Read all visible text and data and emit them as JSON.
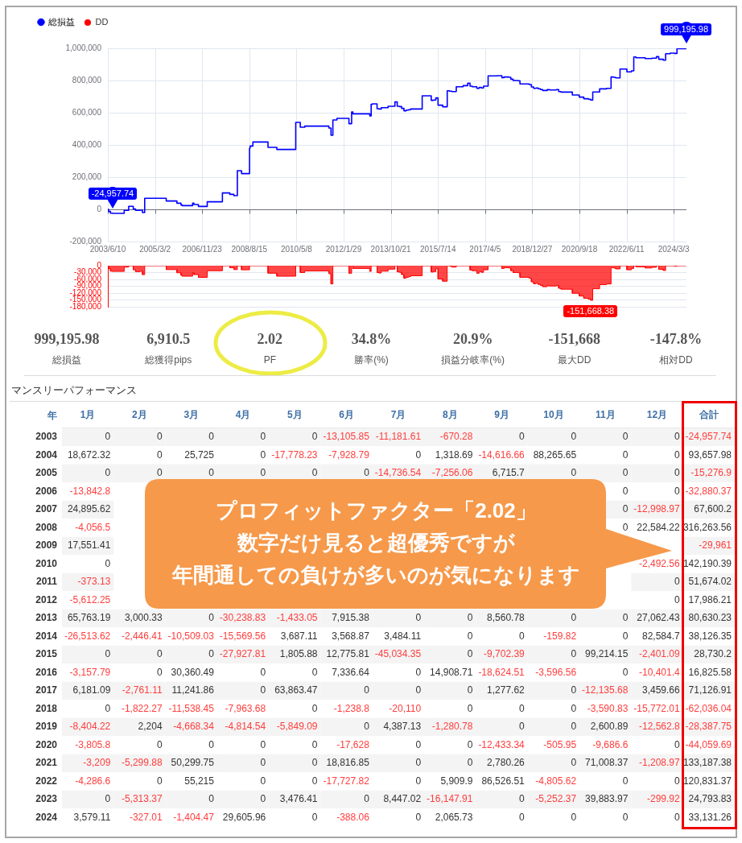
{
  "chart_data": [
    {
      "type": "step",
      "x": [
        "2003-06-10",
        "2003-06-20",
        "2003-07-15",
        "2003-08-15",
        "2004-01-15",
        "2004-03-15",
        "2004-05-15",
        "2004-06-15",
        "2004-08-15",
        "2004-09-15",
        "2004-10-15",
        "2005-07-30",
        "2005-12-20",
        "2006-02-12",
        "2006-03-01",
        "2006-07-18",
        "2006-08-05",
        "2006-10-04",
        "2007-01-30",
        "2007-08-21",
        "2007-11-28",
        "2008-01-21",
        "2008-03-08",
        "2008-05-03",
        "2008-08-18",
        "2008-08-25",
        "2008-10-02",
        "2009-04-22",
        "2009-08-18",
        "2010-04-28",
        "2010-06-28",
        "2010-08-27",
        "2011-07-15",
        "2011-08-13",
        "2011-09-07",
        "2011-10-31",
        "2012-04-09",
        "2012-05-15",
        "2012-06-01",
        "2013-01-13",
        "2013-01-31",
        "2013-02-15",
        "2013-04-20",
        "2013-05-15",
        "2013-06-15",
        "2013-09-15",
        "2013-12-15",
        "2014-01-15",
        "2014-02-15",
        "2014-03-15",
        "2014-04-15",
        "2014-05-15",
        "2014-06-15",
        "2014-07-15",
        "2014-12-15",
        "2015-04-15",
        "2015-05-15",
        "2015-06-15",
        "2015-07-15",
        "2015-09-15",
        "2015-11-15",
        "2015-12-15",
        "2016-01-15",
        "2016-03-15",
        "2016-06-15",
        "2016-08-15",
        "2016-09-15",
        "2016-10-15",
        "2016-12-15",
        "2017-01-15",
        "2017-02-15",
        "2017-03-15",
        "2017-05-15",
        "2017-09-15",
        "2017-11-15",
        "2017-12-15",
        "2018-02-15",
        "2018-03-15",
        "2018-04-15",
        "2018-06-15",
        "2018-07-15",
        "2018-11-15",
        "2018-12-15",
        "2019-01-15",
        "2019-02-15",
        "2019-03-15",
        "2019-04-15",
        "2019-05-15",
        "2019-07-15",
        "2019-08-15",
        "2019-11-15",
        "2019-12-15",
        "2020-01-15",
        "2020-06-15",
        "2020-09-15",
        "2020-11-15",
        "2021-01-15",
        "2021-02-15",
        "2021-03-15",
        "2021-06-15",
        "2021-09-15",
        "2021-11-15",
        "2021-12-15",
        "2022-01-15",
        "2022-03-15",
        "2022-06-15",
        "2022-08-15",
        "2022-09-15",
        "2022-10-15",
        "2023-02-15",
        "2023-05-15",
        "2023-07-15",
        "2023-08-15",
        "2023-10-15",
        "2023-11-15",
        "2024-01-15",
        "2024-03-15",
        "2024-04-15",
        "2024-08-15"
      ],
      "series": [
        {
          "name": "総損益",
          "color": "#0000ff",
          "values": [
            0,
            -13000,
            -24000,
            -24957.74,
            -6000,
            19000,
            2000,
            -6000,
            -5000,
            -20000,
            69000,
            52000,
            38000,
            27000,
            23000,
            38000,
            30000,
            18000,
            47000,
            102000,
            93000,
            85000,
            240000,
            222000,
            380000,
            393000,
            418000,
            385000,
            372000,
            540000,
            510000,
            517000,
            505000,
            460000,
            555000,
            565000,
            532000,
            605000,
            593000,
            580000,
            652000,
            655000,
            625000,
            623000,
            631000,
            640000,
            667000,
            640000,
            638000,
            627000,
            612000,
            616000,
            619000,
            623000,
            705000,
            677000,
            679000,
            692000,
            647000,
            637000,
            736000,
            734000,
            731000,
            761000,
            768000,
            783000,
            765000,
            761000,
            751000,
            757000,
            754000,
            765000,
            829000,
            830000,
            818000,
            822000,
            820000,
            808000,
            800000,
            799000,
            779000,
            775000,
            760000,
            751000,
            753000,
            749000,
            744000,
            738000,
            743000,
            741000,
            744000,
            731000,
            728000,
            710000,
            697000,
            687000,
            684000,
            679000,
            729000,
            748000,
            751000,
            822000,
            820000,
            816000,
            871000,
            854000,
            860000,
            946000,
            941000,
            936000,
            939000,
            948000,
            932000,
            926000,
            966000,
            970000,
            968000,
            998000,
            999195.98
          ]
        }
      ],
      "xlim": [
        "2003-06-10",
        "2024-08-20"
      ],
      "xticks": [
        {
          "value": "2003-06-10",
          "label": "2003/6/10"
        },
        {
          "value": "2005-03-02",
          "label": "2005/3/2"
        },
        {
          "value": "2006-11-23",
          "label": "2006/11/23"
        },
        {
          "value": "2008-08-15",
          "label": "2008/8/15"
        },
        {
          "value": "2010-05-08",
          "label": "2010/5/8"
        },
        {
          "value": "2012-01-29",
          "label": "2012/1/29"
        },
        {
          "value": "2013-10-21",
          "label": "2013/10/21"
        },
        {
          "value": "2015-07-14",
          "label": "2015/7/14"
        },
        {
          "value": "2017-04-05",
          "label": "2017/4/5"
        },
        {
          "value": "2018-12-27",
          "label": "2018/12/27"
        },
        {
          "value": "2020-09-18",
          "label": "2020/9/18"
        },
        {
          "value": "2022-06-11",
          "label": "2022/6/11"
        },
        {
          "value": "2024-03-03",
          "label": "2024/3/3"
        }
      ],
      "ylim": [
        -200000,
        1000000
      ],
      "yticks": [
        {
          "value": -200000,
          "label": "-200,000"
        },
        {
          "value": 0,
          "label": "0"
        },
        {
          "value": 200000,
          "label": "200,000"
        },
        {
          "value": 400000,
          "label": "400,000"
        },
        {
          "value": 600000,
          "label": "600,000"
        },
        {
          "value": 800000,
          "label": "800,000"
        },
        {
          "value": 1000000,
          "label": "1,000,000"
        }
      ],
      "grid": true,
      "legend": "top left",
      "annotations": [
        {
          "text": "-24,957.74",
          "x": "2003-08-15",
          "y": -24957.74
        },
        {
          "text": "999,195.98",
          "x": "2024-08-15",
          "y": 999195.98
        }
      ]
    },
    {
      "type": "area",
      "x": [
        "2003-06-10",
        "2003-06-20",
        "2003-06-20",
        "2003-07-15",
        "2003-07-15",
        "2003-08-15",
        "2003-08-15",
        "2004-01-15",
        "2004-01-15",
        "2004-03-15",
        "2004-03-15",
        "2004-05-15",
        "2004-05-15",
        "2004-06-15",
        "2004-06-15",
        "2004-08-15",
        "2004-08-15",
        "2004-09-15",
        "2004-09-15",
        "2004-10-15",
        "2004-10-15",
        "2005-07-30",
        "2005-07-30",
        "2005-12-20",
        "2005-12-20",
        "2006-02-12",
        "2006-02-12",
        "2006-03-01",
        "2006-03-01",
        "2006-07-18",
        "2006-07-18",
        "2006-08-05",
        "2006-08-05",
        "2006-10-04",
        "2006-10-04",
        "2007-01-30",
        "2007-01-30",
        "2007-08-21",
        "2007-08-21",
        "2007-11-28",
        "2007-11-28",
        "2008-01-21",
        "2008-01-21",
        "2008-03-08",
        "2008-03-08",
        "2008-05-03",
        "2008-05-03",
        "2008-08-18",
        "2008-08-18",
        "2009-04-22",
        "2009-04-22",
        "2009-08-18",
        "2009-08-18",
        "2010-04-28",
        "2010-04-28",
        "2010-06-28",
        "2010-06-28",
        "2010-08-27",
        "2010-08-27",
        "2011-07-15",
        "2011-07-15",
        "2011-08-13",
        "2011-08-13",
        "2011-09-07",
        "2011-09-07",
        "2012-04-09",
        "2012-04-09",
        "2012-05-15",
        "2012-05-15",
        "2012-06-01",
        "2012-06-01",
        "2013-01-13",
        "2013-01-13",
        "2013-01-31",
        "2013-01-31",
        "2013-04-20",
        "2013-04-20",
        "2013-05-15",
        "2013-05-15",
        "2013-06-15",
        "2013-06-15",
        "2013-09-15",
        "2013-09-15",
        "2013-12-15",
        "2013-12-15",
        "2014-01-15",
        "2014-01-15",
        "2014-02-15",
        "2014-02-15",
        "2014-03-15",
        "2014-03-15",
        "2014-04-15",
        "2014-04-15",
        "2014-05-15",
        "2014-05-15",
        "2014-06-15",
        "2014-06-15",
        "2014-07-15",
        "2014-07-15",
        "2014-12-15",
        "2014-12-15",
        "2015-04-15",
        "2015-04-15",
        "2015-05-15",
        "2015-05-15",
        "2015-06-15",
        "2015-06-15",
        "2015-07-15",
        "2015-07-15",
        "2015-09-15",
        "2015-09-15",
        "2015-11-15",
        "2015-11-15",
        "2015-12-15",
        "2015-12-15",
        "2016-01-15",
        "2016-01-15",
        "2016-03-15",
        "2016-03-15",
        "2016-09-15",
        "2016-09-15",
        "2016-10-15",
        "2016-10-15",
        "2016-12-15",
        "2016-12-15",
        "2017-01-15",
        "2017-01-15",
        "2017-02-15",
        "2017-02-15",
        "2017-03-15",
        "2017-03-15",
        "2017-05-15",
        "2017-05-15",
        "2017-11-15",
        "2017-11-15",
        "2017-12-15",
        "2017-12-15",
        "2018-02-15",
        "2018-02-15",
        "2018-03-15",
        "2018-03-15",
        "2018-04-15",
        "2018-04-15",
        "2018-06-15",
        "2018-06-15",
        "2018-07-15",
        "2018-07-15",
        "2018-11-15",
        "2018-11-15",
        "2018-12-15",
        "2018-12-15",
        "2019-01-15",
        "2019-01-15",
        "2019-02-15",
        "2019-02-15",
        "2019-03-15",
        "2019-03-15",
        "2019-04-15",
        "2019-04-15",
        "2019-05-15",
        "2019-05-15",
        "2019-07-15",
        "2019-07-15",
        "2019-08-15",
        "2019-08-15",
        "2019-11-15",
        "2019-11-15",
        "2019-12-15",
        "2019-12-15",
        "2020-01-15",
        "2020-01-15",
        "2020-06-15",
        "2020-06-15",
        "2020-09-15",
        "2020-09-15",
        "2020-11-15",
        "2020-11-15",
        "2021-01-15",
        "2021-01-15",
        "2021-02-15",
        "2021-02-15",
        "2021-03-15",
        "2021-03-15",
        "2021-06-15",
        "2021-06-15",
        "2021-09-15",
        "2021-09-15",
        "2021-11-15",
        "2021-11-15",
        "2021-12-15",
        "2021-12-15",
        "2022-01-15",
        "2022-01-15",
        "2022-03-15",
        "2022-03-15",
        "2022-06-15",
        "2022-06-15",
        "2022-08-15",
        "2022-08-15",
        "2022-09-15",
        "2022-09-15",
        "2022-10-15",
        "2022-10-15",
        "2023-02-15",
        "2023-02-15",
        "2023-05-15",
        "2023-05-15",
        "2023-07-15",
        "2023-07-15",
        "2023-08-15",
        "2023-08-15",
        "2023-10-15",
        "2023-10-15",
        "2023-11-15",
        "2023-11-15",
        "2024-03-15",
        "2024-03-15",
        "2024-04-15",
        "2024-04-15",
        "2024-08-15"
      ],
      "series": [
        {
          "name": "DD",
          "color": "#ff0000",
          "values": [
            0,
            0,
            -13000,
            -13000,
            -24000,
            -24000,
            -25000,
            -25000,
            -6000,
            -6000,
            0,
            0,
            -18000,
            -18000,
            -26000,
            -26000,
            -24000,
            -24000,
            -39000,
            -39000,
            0,
            0,
            -17000,
            -17000,
            -31000,
            -31000,
            -42000,
            -42000,
            -46000,
            -46000,
            -31000,
            -31000,
            -39000,
            -39000,
            -51000,
            -51000,
            -22000,
            -22000,
            0,
            0,
            -9000,
            -9000,
            -17000,
            -17000,
            0,
            0,
            -18000,
            -18000,
            0,
            0,
            -33000,
            -33000,
            -46000,
            -46000,
            0,
            0,
            -30000,
            -30000,
            -23000,
            -23000,
            -35000,
            -35000,
            -80000,
            -80000,
            0,
            0,
            -33000,
            -33000,
            0,
            0,
            -12000,
            -12000,
            -25000,
            -25000,
            0,
            0,
            -30000,
            -30000,
            -32000,
            -32000,
            -24000,
            -24000,
            -15000,
            -15000,
            0,
            0,
            -27000,
            -27000,
            -29000,
            -29000,
            -39000,
            -39000,
            -55000,
            -55000,
            -51000,
            -51000,
            -48000,
            -48000,
            -44000,
            -44000,
            0,
            0,
            -28000,
            -28000,
            -26000,
            -26000,
            -13000,
            -13000,
            -58000,
            -58000,
            -68000,
            -68000,
            0,
            0,
            -2000,
            -2000,
            -6000,
            -6000,
            0,
            0,
            -19000,
            -19000,
            -22000,
            -22000,
            -33000,
            -33000,
            -26000,
            -26000,
            -29000,
            -29000,
            -18000,
            -18000,
            0,
            0,
            -12000,
            -12000,
            -9000,
            -9000,
            -10000,
            -10000,
            -22000,
            -22000,
            -30000,
            -30000,
            -31000,
            -31000,
            -51000,
            -51000,
            -55000,
            -55000,
            -71000,
            -71000,
            -79000,
            -79000,
            -77000,
            -77000,
            -82000,
            -82000,
            -86000,
            -86000,
            -92000,
            -92000,
            -88000,
            -88000,
            -89000,
            -89000,
            -87000,
            -87000,
            -99000,
            -99000,
            -103000,
            -103000,
            -121000,
            -121000,
            -133000,
            -133000,
            -143000,
            -143000,
            -146000,
            -146000,
            -151668.38,
            -151668.38,
            -101000,
            -101000,
            -83000,
            -83000,
            -80000,
            -80000,
            -9000,
            -9000,
            -10000,
            -10000,
            -14000,
            -14000,
            0,
            0,
            -18000,
            -18000,
            -12000,
            -12000,
            0,
            0,
            -5000,
            -5000,
            -10000,
            -10000,
            -7000,
            -7000,
            0,
            0,
            -16000,
            -16000,
            -21000,
            -21000,
            0,
            0,
            -2000,
            -2000,
            0,
            0
          ]
        }
      ],
      "xlim": [
        "2003-06-10",
        "2024-08-20"
      ],
      "ylim": [
        -180000,
        0
      ],
      "yticks": [
        {
          "value": -180000,
          "label": "-180,000"
        },
        {
          "value": -150000,
          "label": "-150,000"
        },
        {
          "value": -120000,
          "label": "-120,000"
        },
        {
          "value": -90000,
          "label": "-90,000"
        },
        {
          "value": -60000,
          "label": "-60,000"
        },
        {
          "value": -30000,
          "label": "-30,000"
        },
        {
          "value": 0,
          "label": "0"
        }
      ],
      "tick_labels": "y",
      "grid": "y",
      "legend": "top left",
      "annotations": [
        {
          "text": "-151,668.38",
          "x": "2021-02-15",
          "y": -151668.38
        }
      ]
    },
    {
      "type": "other",
      "categories": [
        "総損益",
        "総獲得pips",
        "PF",
        "勝率(%)",
        "損益分岐率(%)",
        "最大DD",
        "相対DD"
      ],
      "value_labels": [
        "999,195.98",
        "6,910.5",
        "2.02",
        "34.8%",
        "20.9%",
        "-151,668",
        "-147.8%"
      ]
    },
    {
      "type": "heatmap",
      "title": "マンスリーパフォーマンス",
      "ylabel": "年",
      "categories": [
        "1月",
        "2月",
        "3月",
        "4月",
        "5月",
        "6月",
        "7月",
        "8月",
        "9月",
        "10月",
        "11月",
        "12月",
        "合計"
      ],
      "y_categories": [
        "2003",
        "2004",
        "2005",
        "2006",
        "2007",
        "2008",
        "2009",
        "2010",
        "2011",
        "2012",
        "2013",
        "2014",
        "2015",
        "2016",
        "2017",
        "2018",
        "2019",
        "2020",
        "2021",
        "2022",
        "2023",
        "2024"
      ],
      "cells": [
        [
          0,
          0,
          0,
          0,
          0,
          -13105.85,
          -11181.61,
          -670.28,
          0,
          0,
          0,
          0,
          -24957.74
        ],
        [
          18672.32,
          0,
          25725,
          0,
          -17778.23,
          -7928.79,
          0,
          1318.69,
          -14616.66,
          88265.65,
          0,
          0,
          93657.98
        ],
        [
          0,
          0,
          0,
          0,
          0,
          0,
          -14736.54,
          -7256.06,
          6715.7,
          0,
          0,
          0,
          -15276.9
        ],
        [
          -13842.8,
          null,
          null,
          null,
          null,
          null,
          null,
          null,
          null,
          null,
          0,
          0,
          -32880.37
        ],
        [
          24895.62,
          null,
          null,
          null,
          null,
          null,
          null,
          null,
          null,
          null,
          0,
          -12998.97,
          67600.2
        ],
        [
          -4056.5,
          null,
          null,
          null,
          null,
          null,
          null,
          null,
          null,
          null,
          0,
          22584.22,
          316263.56
        ],
        [
          17551.41,
          null,
          null,
          null,
          null,
          null,
          null,
          null,
          null,
          null,
          null,
          null,
          -29961
        ],
        [
          0,
          null,
          null,
          null,
          null,
          null,
          null,
          null,
          null,
          null,
          null,
          -2492.56,
          142190.39
        ],
        [
          -373.13,
          null,
          null,
          null,
          null,
          null,
          null,
          null,
          null,
          null,
          null,
          0,
          51674.02
        ],
        [
          -5612.25,
          null,
          null,
          null,
          null,
          null,
          null,
          null,
          null,
          null,
          null,
          0,
          17986.21
        ],
        [
          65763.19,
          3000.33,
          0,
          -30238.83,
          -1433.05,
          7915.38,
          0,
          0,
          8560.78,
          0,
          0,
          27062.43,
          80630.23
        ],
        [
          -26513.62,
          -2446.41,
          -10509.03,
          -15569.56,
          3687.11,
          3568.87,
          3484.11,
          0,
          0,
          -159.82,
          0,
          82584.7,
          38126.35
        ],
        [
          0,
          0,
          0,
          -27927.81,
          1805.88,
          12775.81,
          -45034.35,
          0,
          -9702.39,
          0,
          99214.15,
          -2401.09,
          28730.2
        ],
        [
          -3157.79,
          0,
          30360.49,
          0,
          0,
          7336.64,
          0,
          14908.71,
          -18624.51,
          -3596.56,
          0,
          -10401.4,
          16825.58
        ],
        [
          6181.09,
          -2761.11,
          11241.86,
          0,
          63863.47,
          0,
          0,
          0,
          1277.62,
          0,
          -12135.68,
          3459.66,
          71126.91
        ],
        [
          0,
          -1822.27,
          -11538.45,
          -7963.68,
          0,
          -1238.8,
          -20110,
          0,
          0,
          0,
          -3590.83,
          -15772.01,
          -62036.04
        ],
        [
          -8404.22,
          2204,
          -4668.34,
          -4814.54,
          -5849.09,
          0,
          4387.13,
          -1280.78,
          0,
          0,
          2600.89,
          -12562.8,
          -28387.75
        ],
        [
          -3805.8,
          0,
          0,
          0,
          0,
          -17628,
          0,
          0,
          -12433.34,
          -505.95,
          -9686.6,
          0,
          -44059.69
        ],
        [
          -3209,
          -5299.88,
          50299.75,
          0,
          0,
          18816.85,
          0,
          0,
          2780.26,
          0,
          71008.37,
          -1208.97,
          133187.38
        ],
        [
          -4286.6,
          0,
          55215,
          0,
          0,
          -17727.82,
          0,
          5909.9,
          86526.51,
          -4805.62,
          0,
          0,
          120831.37
        ],
        [
          0,
          -5313.37,
          0,
          0,
          3476.41,
          0,
          8447.02,
          -16147.91,
          0,
          -5252.37,
          39883.97,
          -299.92,
          24793.83
        ],
        [
          3579.11,
          -327.01,
          -1404.47,
          29605.96,
          0,
          -388.06,
          0,
          2065.73,
          0,
          0,
          0,
          0,
          33131.26
        ]
      ],
      "cell_labels": [
        [
          "0",
          "0",
          "0",
          "0",
          "0",
          "-13,105.85",
          "-11,181.61",
          "-670.28",
          "0",
          "0",
          "0",
          "0",
          "-24,957.74"
        ],
        [
          "18,672.32",
          "0",
          "25,725",
          "0",
          "-17,778.23",
          "-7,928.79",
          "0",
          "1,318.69",
          "-14,616.66",
          "88,265.65",
          "0",
          "0",
          "93,657.98"
        ],
        [
          "0",
          "0",
          "0",
          "0",
          "0",
          "0",
          "-14,736.54",
          "-7,256.06",
          "6,715.7",
          "0",
          "0",
          "0",
          "-15,276.9"
        ],
        [
          "-13,842.8",
          null,
          null,
          null,
          null,
          null,
          null,
          null,
          null,
          null,
          "0",
          "0",
          "-32,880.37"
        ],
        [
          "24,895.62",
          null,
          null,
          null,
          null,
          null,
          null,
          null,
          null,
          null,
          "0",
          "-12,998.97",
          "67,600.2"
        ],
        [
          "-4,056.5",
          null,
          null,
          null,
          null,
          null,
          null,
          null,
          null,
          null,
          "0",
          "22,584.22",
          "316,263.56"
        ],
        [
          "17,551.41",
          null,
          null,
          null,
          null,
          null,
          null,
          null,
          null,
          null,
          null,
          null,
          "-29,961"
        ],
        [
          "0",
          null,
          null,
          null,
          null,
          null,
          null,
          null,
          null,
          null,
          null,
          "-2,492.56",
          "142,190.39"
        ],
        [
          "-373.13",
          null,
          null,
          null,
          null,
          null,
          null,
          null,
          null,
          null,
          null,
          "0",
          "51,674.02"
        ],
        [
          "-5,612.25",
          null,
          null,
          null,
          null,
          null,
          null,
          null,
          null,
          null,
          null,
          "0",
          "17,986.21"
        ],
        [
          "65,763.19",
          "3,000.33",
          "0",
          "-30,238.83",
          "-1,433.05",
          "7,915.38",
          "0",
          "0",
          "8,560.78",
          "0",
          "0",
          "27,062.43",
          "80,630.23"
        ],
        [
          "-26,513.62",
          "-2,446.41",
          "-10,509.03",
          "-15,569.56",
          "3,687.11",
          "3,568.87",
          "3,484.11",
          "0",
          "0",
          "-159.82",
          "0",
          "82,584.7",
          "38,126.35"
        ],
        [
          "0",
          "0",
          "0",
          "-27,927.81",
          "1,805.88",
          "12,775.81",
          "-45,034.35",
          "0",
          "-9,702.39",
          "0",
          "99,214.15",
          "-2,401.09",
          "28,730.2"
        ],
        [
          "-3,157.79",
          "0",
          "30,360.49",
          "0",
          "0",
          "7,336.64",
          "0",
          "14,908.71",
          "-18,624.51",
          "-3,596.56",
          "0",
          "-10,401.4",
          "16,825.58"
        ],
        [
          "6,181.09",
          "-2,761.11",
          "11,241.86",
          "0",
          "63,863.47",
          "0",
          "0",
          "0",
          "1,277.62",
          "0",
          "-12,135.68",
          "3,459.66",
          "71,126.91"
        ],
        [
          "0",
          "-1,822.27",
          "-11,538.45",
          "-7,963.68",
          "0",
          "-1,238.8",
          "-20,110",
          "0",
          "0",
          "0",
          "-3,590.83",
          "-15,772.01",
          "-62,036.04"
        ],
        [
          "-8,404.22",
          "2,204",
          "-4,668.34",
          "-4,814.54",
          "-5,849.09",
          "0",
          "4,387.13",
          "-1,280.78",
          "0",
          "0",
          "2,600.89",
          "-12,562.8",
          "-28,387.75"
        ],
        [
          "-3,805.8",
          "0",
          "0",
          "0",
          "0",
          "-17,628",
          "0",
          "0",
          "-12,433.34",
          "-505.95",
          "-9,686.6",
          "0",
          "-44,059.69"
        ],
        [
          "-3,209",
          "-5,299.88",
          "50,299.75",
          "0",
          "0",
          "18,816.85",
          "0",
          "0",
          "2,780.26",
          "0",
          "71,008.37",
          "-1,208.97",
          "133,187.38"
        ],
        [
          "-4,286.6",
          "0",
          "55,215",
          "0",
          "0",
          "-17,727.82",
          "0",
          "5,909.9",
          "86,526.51",
          "-4,805.62",
          "0",
          "0",
          "120,831.37"
        ],
        [
          "0",
          "-5,313.37",
          "0",
          "0",
          "3,476.41",
          "0",
          "8,447.02",
          "-16,147.91",
          "0",
          "-5,252.37",
          "39,883.97",
          "-299.92",
          "24,793.83"
        ],
        [
          "3,579.11",
          "-327.01",
          "-1,404.47",
          "29,605.96",
          "0",
          "-388.06",
          "0",
          "2,065.73",
          "0",
          "0",
          "0",
          "0",
          "33,131.26"
        ]
      ],
      "annotations": [
        "プロフィットファクター「2.02」",
        "数字だけ見ると超優秀ですが",
        "年間通しての負けが多いのが気になります"
      ]
    }
  ]
}
